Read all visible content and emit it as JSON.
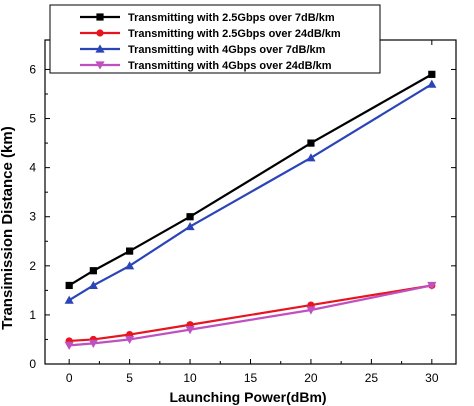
{
  "chart_data": {
    "type": "line",
    "title": "",
    "xlabel": "Launching Power(dBm)",
    "ylabel": "Transimission Distance (km)",
    "xlim": [
      -2,
      32
    ],
    "ylim": [
      0,
      6.6
    ],
    "xticks": [
      0,
      5,
      10,
      15,
      20,
      25,
      30
    ],
    "yticks": [
      0,
      1,
      2,
      3,
      4,
      5,
      6
    ],
    "x": [
      0,
      2,
      5,
      10,
      20,
      30
    ],
    "legend_position": "top-left",
    "grid": false,
    "series": [
      {
        "name": "Transmitting with 2.5Gbps over 7dB/km",
        "color": "#000000",
        "marker": "square",
        "values": [
          1.6,
          1.9,
          2.3,
          3.0,
          4.5,
          5.9
        ]
      },
      {
        "name": "Transmitting with 2.5Gbps over 24dB/km",
        "color": "#e8141e",
        "marker": "circle",
        "values": [
          0.47,
          0.5,
          0.6,
          0.8,
          1.2,
          1.6
        ]
      },
      {
        "name": "Transmitting with 4Gbps over 7dB/km",
        "color": "#2b45b8",
        "marker": "triangle-up",
        "values": [
          1.3,
          1.6,
          2.0,
          2.8,
          4.2,
          5.7
        ]
      },
      {
        "name": "Transmitting with 4Gbps over 24dB/km",
        "color": "#c050c0",
        "marker": "triangle-down",
        "values": [
          0.38,
          0.42,
          0.5,
          0.7,
          1.1,
          1.6
        ]
      }
    ]
  }
}
